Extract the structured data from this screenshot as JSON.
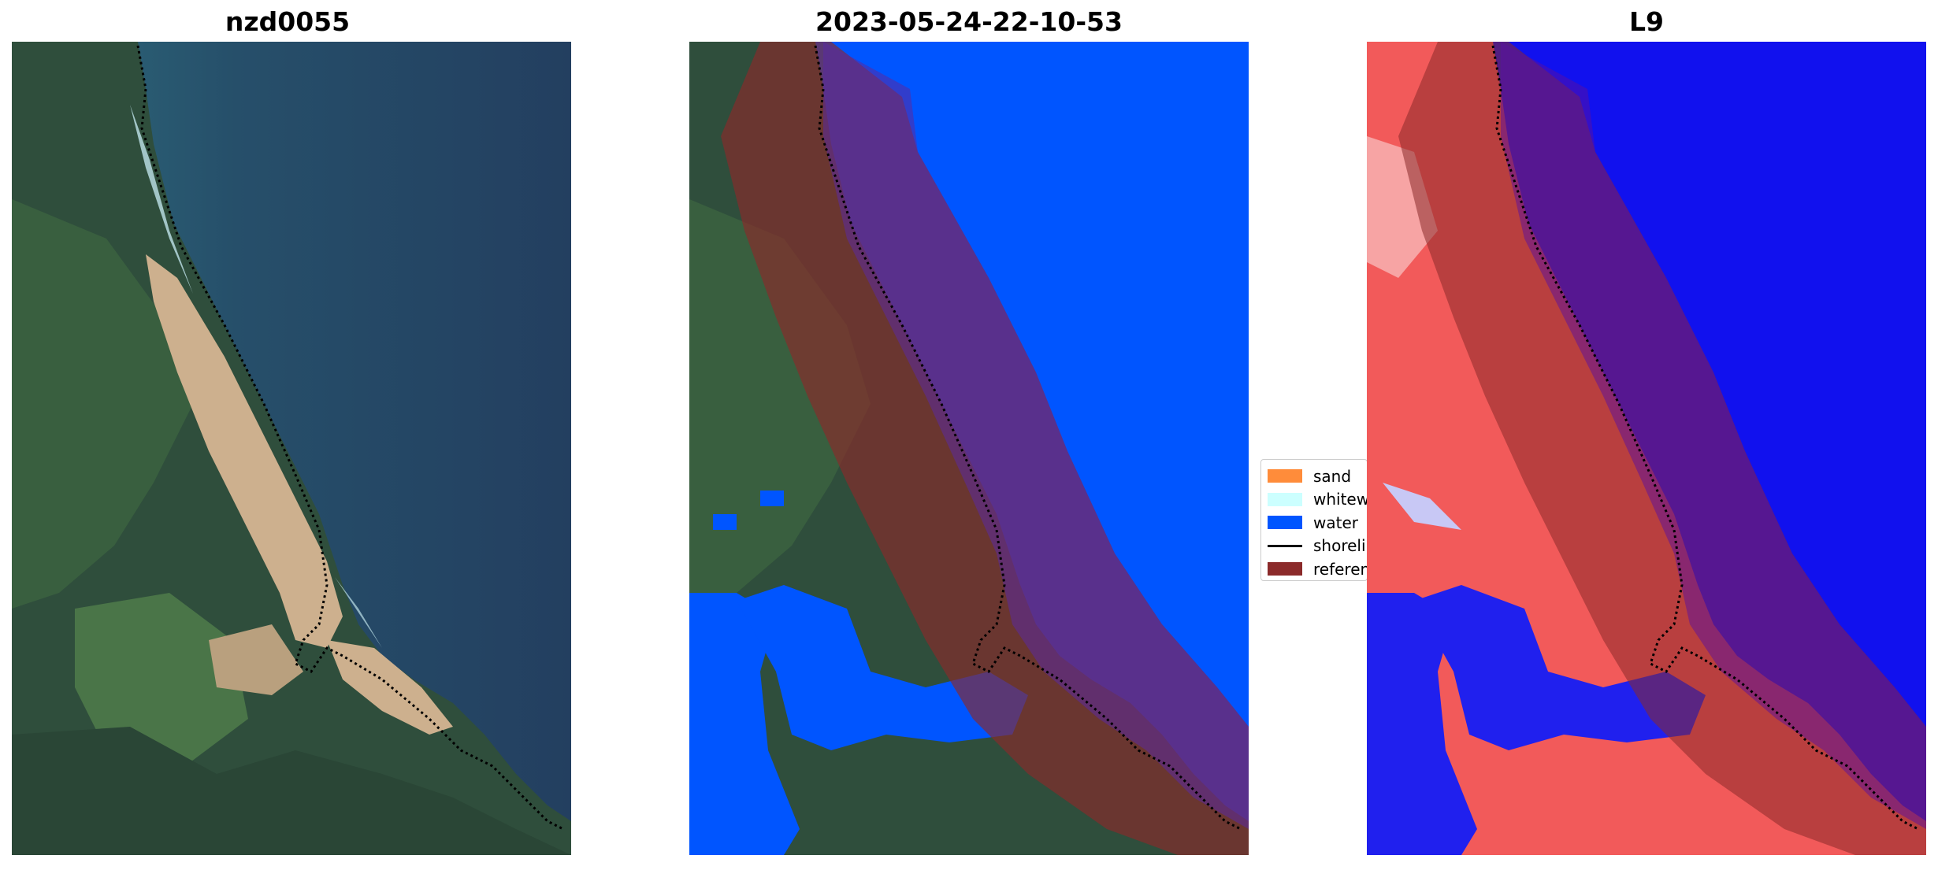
{
  "panels": [
    {
      "title": "nzd0055"
    },
    {
      "title": "2023-05-24-22-10-53"
    },
    {
      "title": "L9"
    }
  ],
  "legend": {
    "items": [
      {
        "label": "sand",
        "color": "#ff8c3a",
        "kind": "patch"
      },
      {
        "label": "whitewater",
        "color": "#ccffff",
        "kind": "patch"
      },
      {
        "label": "water",
        "color": "#0055ff",
        "kind": "patch"
      },
      {
        "label": "shoreline",
        "color": "#000000",
        "kind": "line"
      },
      {
        "label": "reference shoreline buffer",
        "color": "#8b2a2a",
        "kind": "patch"
      }
    ]
  },
  "colors": {
    "ocean": "#244c6a",
    "land_dark": "#2b4a3a",
    "land_green": "#4c7a4c",
    "beach_sand": "#cdb08e",
    "classified_water": "#0055ff",
    "buffer_overlay": "#8b2a2a",
    "mndwi_land": "#f05050",
    "mndwi_water": "#1010ee"
  }
}
